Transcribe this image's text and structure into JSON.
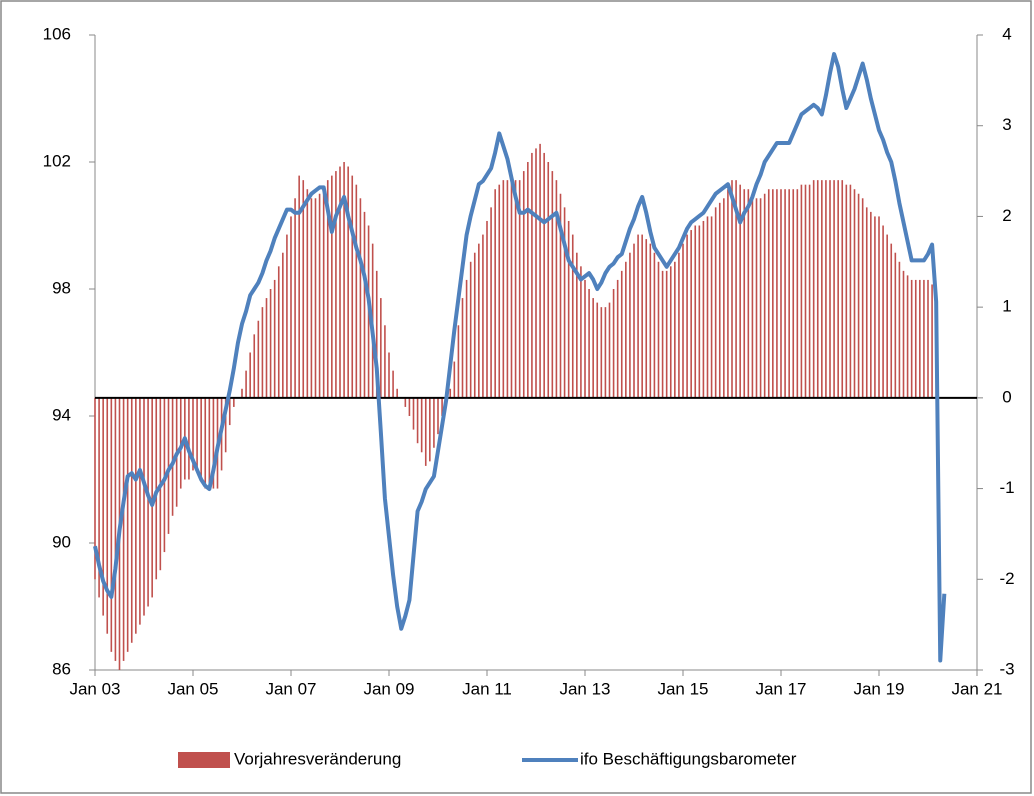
{
  "chart_data": {
    "type": "bar-line",
    "x": [
      "2003-01",
      "2003-02",
      "2003-03",
      "2003-04",
      "2003-05",
      "2003-06",
      "2003-07",
      "2003-08",
      "2003-09",
      "2003-10",
      "2003-11",
      "2003-12",
      "2004-01",
      "2004-02",
      "2004-03",
      "2004-04",
      "2004-05",
      "2004-06",
      "2004-07",
      "2004-08",
      "2004-09",
      "2004-10",
      "2004-11",
      "2004-12",
      "2005-01",
      "2005-02",
      "2005-03",
      "2005-04",
      "2005-05",
      "2005-06",
      "2005-07",
      "2005-08",
      "2005-09",
      "2005-10",
      "2005-11",
      "2005-12",
      "2006-01",
      "2006-02",
      "2006-03",
      "2006-04",
      "2006-05",
      "2006-06",
      "2006-07",
      "2006-08",
      "2006-09",
      "2006-10",
      "2006-11",
      "2006-12",
      "2007-01",
      "2007-02",
      "2007-03",
      "2007-04",
      "2007-05",
      "2007-06",
      "2007-07",
      "2007-08",
      "2007-09",
      "2007-10",
      "2007-11",
      "2007-12",
      "2008-01",
      "2008-02",
      "2008-03",
      "2008-04",
      "2008-05",
      "2008-06",
      "2008-07",
      "2008-08",
      "2008-09",
      "2008-10",
      "2008-11",
      "2008-12",
      "2009-01",
      "2009-02",
      "2009-03",
      "2009-04",
      "2009-05",
      "2009-06",
      "2009-07",
      "2009-08",
      "2009-09",
      "2009-10",
      "2009-11",
      "2009-12",
      "2010-01",
      "2010-02",
      "2010-03",
      "2010-04",
      "2010-05",
      "2010-06",
      "2010-07",
      "2010-08",
      "2010-09",
      "2010-10",
      "2010-11",
      "2010-12",
      "2011-01",
      "2011-02",
      "2011-03",
      "2011-04",
      "2011-05",
      "2011-06",
      "2011-07",
      "2011-08",
      "2011-09",
      "2011-10",
      "2011-11",
      "2011-12",
      "2012-01",
      "2012-02",
      "2012-03",
      "2012-04",
      "2012-05",
      "2012-06",
      "2012-07",
      "2012-08",
      "2012-09",
      "2012-10",
      "2012-11",
      "2012-12",
      "2013-01",
      "2013-02",
      "2013-03",
      "2013-04",
      "2013-05",
      "2013-06",
      "2013-07",
      "2013-08",
      "2013-09",
      "2013-10",
      "2013-11",
      "2013-12",
      "2014-01",
      "2014-02",
      "2014-03",
      "2014-04",
      "2014-05",
      "2014-06",
      "2014-07",
      "2014-08",
      "2014-09",
      "2014-10",
      "2014-11",
      "2014-12",
      "2015-01",
      "2015-02",
      "2015-03",
      "2015-04",
      "2015-05",
      "2015-06",
      "2015-07",
      "2015-08",
      "2015-09",
      "2015-10",
      "2015-11",
      "2015-12",
      "2016-01",
      "2016-02",
      "2016-03",
      "2016-04",
      "2016-05",
      "2016-06",
      "2016-07",
      "2016-08",
      "2016-09",
      "2016-10",
      "2016-11",
      "2016-12",
      "2017-01",
      "2017-02",
      "2017-03",
      "2017-04",
      "2017-05",
      "2017-06",
      "2017-07",
      "2017-08",
      "2017-09",
      "2017-10",
      "2017-11",
      "2017-12",
      "2018-01",
      "2018-02",
      "2018-03",
      "2018-04",
      "2018-05",
      "2018-06",
      "2018-07",
      "2018-08",
      "2018-09",
      "2018-10",
      "2018-11",
      "2018-12",
      "2019-01",
      "2019-02",
      "2019-03",
      "2019-04",
      "2019-05",
      "2019-06",
      "2019-07",
      "2019-08",
      "2019-09",
      "2019-10",
      "2019-11",
      "2019-12",
      "2020-01",
      "2020-02",
      "2020-03",
      "2020-04",
      "2020-05"
    ],
    "series": [
      {
        "name": "Vorjahresveränderung",
        "color": "#c0504d",
        "axis": "y2",
        "kind": "bar",
        "values": [
          -2.0,
          -2.2,
          -2.4,
          -2.6,
          -2.8,
          -2.9,
          -3.0,
          -2.9,
          -2.8,
          -2.7,
          -2.6,
          -2.5,
          -2.4,
          -2.3,
          -2.2,
          -2.0,
          -1.9,
          -1.7,
          -1.5,
          -1.3,
          -1.2,
          -1.0,
          -0.9,
          -0.9,
          -0.8,
          -0.8,
          -0.9,
          -1.0,
          -1.0,
          -1.0,
          -1.0,
          -0.8,
          -0.6,
          -0.3,
          -0.1,
          0.0,
          0.1,
          0.3,
          0.5,
          0.7,
          0.85,
          1.0,
          1.1,
          1.2,
          1.3,
          1.45,
          1.6,
          1.8,
          2.0,
          2.2,
          2.45,
          2.4,
          2.3,
          2.2,
          2.2,
          2.25,
          2.3,
          2.4,
          2.45,
          2.5,
          2.55,
          2.6,
          2.55,
          2.45,
          2.35,
          2.2,
          2.05,
          1.9,
          1.7,
          1.4,
          1.1,
          0.8,
          0.5,
          0.3,
          0.1,
          0.0,
          -0.1,
          -0.2,
          -0.35,
          -0.5,
          -0.6,
          -0.75,
          -0.7,
          -0.55,
          -0.4,
          -0.2,
          0.0,
          0.1,
          0.4,
          0.8,
          1.1,
          1.3,
          1.5,
          1.6,
          1.7,
          1.8,
          1.95,
          2.1,
          2.3,
          2.35,
          2.4,
          2.4,
          2.4,
          2.4,
          2.4,
          2.5,
          2.6,
          2.7,
          2.75,
          2.8,
          2.7,
          2.6,
          2.5,
          2.4,
          2.25,
          2.1,
          1.95,
          1.8,
          1.6,
          1.45,
          1.3,
          1.2,
          1.1,
          1.05,
          1.0,
          1.0,
          1.05,
          1.2,
          1.3,
          1.4,
          1.5,
          1.6,
          1.7,
          1.8,
          1.8,
          1.75,
          1.7,
          1.6,
          1.5,
          1.4,
          1.4,
          1.45,
          1.5,
          1.6,
          1.7,
          1.8,
          1.85,
          1.9,
          1.9,
          1.95,
          2.0,
          2.0,
          2.1,
          2.15,
          2.2,
          2.3,
          2.4,
          2.4,
          2.35,
          2.3,
          2.3,
          2.25,
          2.2,
          2.2,
          2.25,
          2.3,
          2.3,
          2.3,
          2.3,
          2.3,
          2.3,
          2.3,
          2.3,
          2.35,
          2.35,
          2.35,
          2.4,
          2.4,
          2.4,
          2.4,
          2.4,
          2.4,
          2.4,
          2.4,
          2.35,
          2.35,
          2.3,
          2.25,
          2.2,
          2.1,
          2.05,
          2.0,
          2.0,
          1.9,
          1.8,
          1.7,
          1.6,
          1.5,
          1.4,
          1.35,
          1.3,
          1.3,
          1.3,
          1.3,
          1.3,
          1.25,
          1.2,
          null,
          null
        ]
      },
      {
        "name": "ifo Beschäftigungsbarometer",
        "color": "#4f81bd",
        "axis": "y",
        "kind": "line",
        "values": [
          89.9,
          89.3,
          88.8,
          88.5,
          88.3,
          89.2,
          90.4,
          91.3,
          92.1,
          92.2,
          92.0,
          92.3,
          91.9,
          91.5,
          91.2,
          91.6,
          91.8,
          92.0,
          92.3,
          92.5,
          92.8,
          93.0,
          93.3,
          92.9,
          92.6,
          92.3,
          92.0,
          91.8,
          91.7,
          92.3,
          93.0,
          93.6,
          94.2,
          94.8,
          95.5,
          96.3,
          96.9,
          97.3,
          97.8,
          98.0,
          98.2,
          98.5,
          98.9,
          99.2,
          99.6,
          99.9,
          100.2,
          100.5,
          100.5,
          100.4,
          100.4,
          100.6,
          100.8,
          101.0,
          101.1,
          101.2,
          101.2,
          100.5,
          99.8,
          100.3,
          100.6,
          100.9,
          100.3,
          99.8,
          99.3,
          98.9,
          98.4,
          97.7,
          96.6,
          95.5,
          93.5,
          91.4,
          90.2,
          89.0,
          88.0,
          87.3,
          87.7,
          88.2,
          89.6,
          91.0,
          91.3,
          91.7,
          91.9,
          92.1,
          92.9,
          93.7,
          94.5,
          95.6,
          96.7,
          97.7,
          98.7,
          99.7,
          100.3,
          100.8,
          101.3,
          101.4,
          101.6,
          101.8,
          102.3,
          102.9,
          102.5,
          102.1,
          101.5,
          100.9,
          100.4,
          100.4,
          100.5,
          100.4,
          100.3,
          100.2,
          100.1,
          100.2,
          100.3,
          100.4,
          99.9,
          99.4,
          98.9,
          98.7,
          98.5,
          98.3,
          98.4,
          98.5,
          98.3,
          98.0,
          98.2,
          98.5,
          98.7,
          98.8,
          99.0,
          99.1,
          99.5,
          99.9,
          100.2,
          100.6,
          100.9,
          100.4,
          99.8,
          99.3,
          99.1,
          98.9,
          98.7,
          98.9,
          99.1,
          99.3,
          99.6,
          99.9,
          100.1,
          100.2,
          100.3,
          100.4,
          100.6,
          100.8,
          101.0,
          101.1,
          101.2,
          101.3,
          100.9,
          100.5,
          100.1,
          100.4,
          100.6,
          100.9,
          101.3,
          101.6,
          102.0,
          102.2,
          102.4,
          102.6,
          102.6,
          102.6,
          102.6,
          102.9,
          103.2,
          103.5,
          103.6,
          103.7,
          103.8,
          103.7,
          103.5,
          104.1,
          104.8,
          105.4,
          105.0,
          104.3,
          103.7,
          104.0,
          104.3,
          104.7,
          105.1,
          104.6,
          104.0,
          103.5,
          103.0,
          102.7,
          102.3,
          102.0,
          101.4,
          100.7,
          100.1,
          99.5,
          98.9,
          98.9,
          98.9,
          98.9,
          99.1,
          99.4,
          97.6,
          86.3,
          88.4
        ]
      }
    ],
    "xlim": [
      "2003-01",
      "2021-01"
    ],
    "xticks": [
      {
        "value": "2003-01",
        "label": "Jan 03"
      },
      {
        "value": "2005-01",
        "label": "Jan 05"
      },
      {
        "value": "2007-01",
        "label": "Jan 07"
      },
      {
        "value": "2009-01",
        "label": "Jan 09"
      },
      {
        "value": "2011-01",
        "label": "Jan 11"
      },
      {
        "value": "2013-01",
        "label": "Jan 13"
      },
      {
        "value": "2015-01",
        "label": "Jan 15"
      },
      {
        "value": "2017-01",
        "label": "Jan 17"
      },
      {
        "value": "2019-01",
        "label": "Jan 19"
      },
      {
        "value": "2021-01",
        "label": "Jan 21"
      }
    ],
    "ylim": [
      86,
      106
    ],
    "yticks": [
      86,
      90,
      94,
      98,
      102,
      106
    ],
    "y2lim": [
      -3,
      4
    ],
    "y2ticks": [
      -3,
      -2,
      -1,
      0,
      1,
      2,
      3,
      4
    ],
    "legend": "bottom"
  }
}
